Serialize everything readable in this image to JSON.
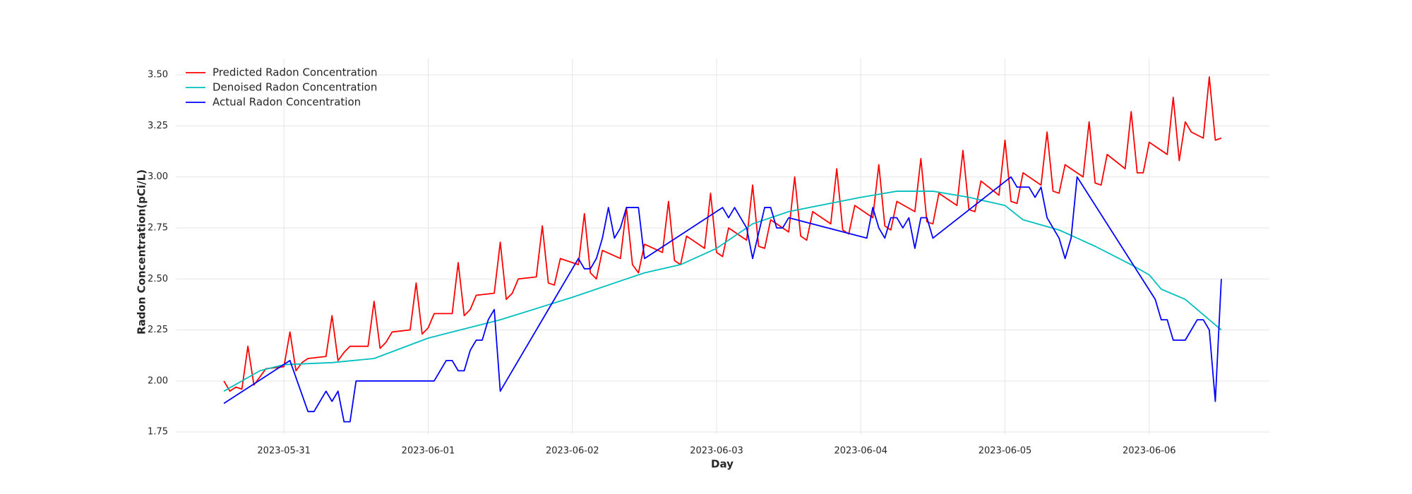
{
  "chart_data": {
    "type": "line",
    "x_label": "Day",
    "y_label": "Radon Concentration(pCi/L)",
    "xlim": [
      "2023-05-30 06:00",
      "2023-06-06 20:00"
    ],
    "xticks": [
      "2023-05-31",
      "2023-06-01",
      "2023-06-02",
      "2023-06-03",
      "2023-06-04",
      "2023-06-05",
      "2023-06-06"
    ],
    "ylim": [
      1.74,
      3.58
    ],
    "yticks": [
      1.75,
      {
        "value": 2.0,
        "label": "2.00"
      },
      2.25,
      {
        "value": 2.5,
        "label": "2.50"
      },
      2.75,
      {
        "value": 3.0,
        "label": "3.00"
      },
      3.25,
      {
        "value": 3.5,
        "label": "3.50"
      }
    ],
    "grid": true,
    "legend": "upper left",
    "series": [
      {
        "name": "Predicted Radon Concentration",
        "color": "#ff0000",
        "x": [
          "2023-05-30 14:00",
          "2023-05-30 15:00",
          "2023-05-30 16:00",
          "2023-05-30 17:00",
          "2023-05-30 18:00",
          "2023-05-30 19:00",
          "2023-05-30 20:00",
          "2023-05-30 21:00",
          "2023-05-31 00:00",
          "2023-05-31 01:00",
          "2023-05-31 02:00",
          "2023-05-31 03:00",
          "2023-05-31 04:00",
          "2023-05-31 07:00",
          "2023-05-31 08:00",
          "2023-05-31 09:00",
          "2023-05-31 10:00",
          "2023-05-31 11:00",
          "2023-05-31 14:00",
          "2023-05-31 15:00",
          "2023-05-31 16:00",
          "2023-05-31 17:00",
          "2023-05-31 18:00",
          "2023-05-31 21:00",
          "2023-05-31 22:00",
          "2023-05-31 23:00",
          "2023-06-01 00:00",
          "2023-06-01 01:00",
          "2023-06-01 04:00",
          "2023-06-01 05:00",
          "2023-06-01 06:00",
          "2023-06-01 07:00",
          "2023-06-01 08:00",
          "2023-06-01 11:00",
          "2023-06-01 12:00",
          "2023-06-01 13:00",
          "2023-06-01 14:00",
          "2023-06-01 15:00",
          "2023-06-01 18:00",
          "2023-06-01 19:00",
          "2023-06-01 20:00",
          "2023-06-01 21:00",
          "2023-06-01 22:00",
          "2023-06-02 01:00",
          "2023-06-02 02:00",
          "2023-06-02 03:00",
          "2023-06-02 04:00",
          "2023-06-02 05:00",
          "2023-06-02 08:00",
          "2023-06-02 09:00",
          "2023-06-02 10:00",
          "2023-06-02 11:00",
          "2023-06-02 12:00",
          "2023-06-02 15:00",
          "2023-06-02 16:00",
          "2023-06-02 17:00",
          "2023-06-02 18:00",
          "2023-06-02 19:00",
          "2023-06-02 22:00",
          "2023-06-02 23:00",
          "2023-06-03 00:00",
          "2023-06-03 01:00",
          "2023-06-03 02:00",
          "2023-06-03 05:00",
          "2023-06-03 06:00",
          "2023-06-03 07:00",
          "2023-06-03 08:00",
          "2023-06-03 09:00",
          "2023-06-03 12:00",
          "2023-06-03 13:00",
          "2023-06-03 14:00",
          "2023-06-03 15:00",
          "2023-06-03 16:00",
          "2023-06-03 19:00",
          "2023-06-03 20:00",
          "2023-06-03 21:00",
          "2023-06-03 22:00",
          "2023-06-03 23:00",
          "2023-06-04 02:00",
          "2023-06-04 03:00",
          "2023-06-04 04:00",
          "2023-06-04 05:00",
          "2023-06-04 06:00",
          "2023-06-04 09:00",
          "2023-06-04 10:00",
          "2023-06-04 11:00",
          "2023-06-04 12:00",
          "2023-06-04 13:00",
          "2023-06-04 16:00",
          "2023-06-04 17:00",
          "2023-06-04 18:00",
          "2023-06-04 19:00",
          "2023-06-04 20:00",
          "2023-06-04 23:00",
          "2023-06-05 00:00",
          "2023-06-05 01:00",
          "2023-06-05 02:00",
          "2023-06-05 03:00",
          "2023-06-05 06:00",
          "2023-06-05 07:00",
          "2023-06-05 08:00",
          "2023-06-05 09:00",
          "2023-06-05 10:00",
          "2023-06-05 13:00",
          "2023-06-05 14:00",
          "2023-06-05 15:00",
          "2023-06-05 16:00",
          "2023-06-05 17:00",
          "2023-06-05 20:00",
          "2023-06-05 21:00",
          "2023-06-05 22:00",
          "2023-06-05 23:00",
          "2023-06-06 00:00",
          "2023-06-06 03:00",
          "2023-06-06 04:00",
          "2023-06-06 05:00",
          "2023-06-06 06:00",
          "2023-06-06 07:00",
          "2023-06-06 09:00",
          "2023-06-06 10:00",
          "2023-06-06 11:00",
          "2023-06-06 12:00"
        ],
        "values": [
          2.0,
          1.95,
          1.97,
          1.96,
          2.17,
          1.98,
          2.02,
          2.06,
          2.07,
          2.24,
          2.05,
          2.09,
          2.11,
          2.12,
          2.32,
          2.1,
          2.14,
          2.17,
          2.17,
          2.39,
          2.16,
          2.19,
          2.24,
          2.25,
          2.48,
          2.23,
          2.26,
          2.33,
          2.33,
          2.58,
          2.32,
          2.35,
          2.42,
          2.43,
          2.68,
          2.4,
          2.43,
          2.5,
          2.51,
          2.76,
          2.48,
          2.47,
          2.6,
          2.57,
          2.82,
          2.53,
          2.5,
          2.64,
          2.6,
          2.85,
          2.57,
          2.53,
          2.67,
          2.63,
          2.88,
          2.59,
          2.57,
          2.71,
          2.65,
          2.92,
          2.63,
          2.61,
          2.75,
          2.69,
          2.96,
          2.66,
          2.65,
          2.79,
          2.73,
          3.0,
          2.71,
          2.69,
          2.83,
          2.77,
          3.04,
          2.74,
          2.72,
          2.86,
          2.8,
          3.06,
          2.76,
          2.74,
          2.88,
          2.83,
          3.09,
          2.78,
          2.77,
          2.92,
          2.86,
          3.13,
          2.84,
          2.83,
          2.98,
          2.91,
          3.18,
          2.88,
          2.87,
          3.02,
          2.96,
          3.22,
          2.93,
          2.92,
          3.06,
          3.0,
          3.27,
          2.97,
          2.96,
          3.11,
          3.04,
          3.32,
          3.02,
          3.02,
          3.17,
          3.11,
          3.39,
          3.08,
          3.27,
          3.22,
          3.19,
          3.49,
          3.18,
          3.19
        ]
      },
      {
        "name": "Denoised Radon Concentration",
        "color": "#00bfbf",
        "x": [
          "2023-05-30 14:00",
          "2023-05-30 20:00",
          "2023-05-31 00:00",
          "2023-05-31 08:00",
          "2023-05-31 15:00",
          "2023-06-01 00:00",
          "2023-06-01 12:00",
          "2023-06-02 00:00",
          "2023-06-02 12:00",
          "2023-06-02 18:00",
          "2023-06-03 00:00",
          "2023-06-03 06:00",
          "2023-06-03 12:00",
          "2023-06-04 00:00",
          "2023-06-04 06:00",
          "2023-06-04 12:00",
          "2023-06-04 18:00",
          "2023-06-05 00:00",
          "2023-06-05 03:00",
          "2023-06-05 09:00",
          "2023-06-05 15:00",
          "2023-06-05 21:00",
          "2023-06-06 00:00",
          "2023-06-06 02:00",
          "2023-06-06 06:00",
          "2023-06-06 12:00"
        ],
        "values": [
          1.95,
          2.05,
          2.08,
          2.09,
          2.11,
          2.21,
          2.3,
          2.41,
          2.53,
          2.57,
          2.65,
          2.77,
          2.83,
          2.9,
          2.93,
          2.93,
          2.9,
          2.86,
          2.79,
          2.74,
          2.66,
          2.57,
          2.52,
          2.45,
          2.4,
          2.25
        ]
      },
      {
        "name": "Actual Radon Concentration",
        "color": "#0000ff",
        "x": [
          "2023-05-30 14:00",
          "2023-05-31 01:00",
          "2023-05-31 04:00",
          "2023-05-31 05:00",
          "2023-05-31 07:00",
          "2023-05-31 08:00",
          "2023-05-31 09:00",
          "2023-05-31 10:00",
          "2023-05-31 11:00",
          "2023-05-31 12:00",
          "2023-06-01 01:00",
          "2023-06-01 03:00",
          "2023-06-01 04:00",
          "2023-06-01 05:00",
          "2023-06-01 06:00",
          "2023-06-01 07:00",
          "2023-06-01 08:00",
          "2023-06-01 09:00",
          "2023-06-01 10:00",
          "2023-06-01 11:00",
          "2023-06-01 12:00",
          "2023-06-02 01:00",
          "2023-06-02 02:00",
          "2023-06-02 03:00",
          "2023-06-02 04:00",
          "2023-06-02 05:00",
          "2023-06-02 06:00",
          "2023-06-02 07:00",
          "2023-06-02 08:00",
          "2023-06-02 09:00",
          "2023-06-02 10:00",
          "2023-06-02 11:00",
          "2023-06-02 12:00",
          "2023-06-03 01:00",
          "2023-06-03 02:00",
          "2023-06-03 03:00",
          "2023-06-03 04:00",
          "2023-06-03 05:00",
          "2023-06-03 06:00",
          "2023-06-03 08:00",
          "2023-06-03 09:00",
          "2023-06-03 10:00",
          "2023-06-03 11:00",
          "2023-06-03 12:00",
          "2023-06-04 01:00",
          "2023-06-04 02:00",
          "2023-06-04 03:00",
          "2023-06-04 04:00",
          "2023-06-04 05:00",
          "2023-06-04 06:00",
          "2023-06-04 07:00",
          "2023-06-04 08:00",
          "2023-06-04 09:00",
          "2023-06-04 10:00",
          "2023-06-04 11:00",
          "2023-06-04 12:00",
          "2023-06-05 01:00",
          "2023-06-05 02:00",
          "2023-06-05 03:00",
          "2023-06-05 04:00",
          "2023-06-05 05:00",
          "2023-06-05 06:00",
          "2023-06-05 07:00",
          "2023-06-05 09:00",
          "2023-06-05 10:00",
          "2023-06-05 11:00",
          "2023-06-05 12:00",
          "2023-06-06 01:00",
          "2023-06-06 02:00",
          "2023-06-06 03:00",
          "2023-06-06 04:00",
          "2023-06-06 06:00",
          "2023-06-06 08:00",
          "2023-06-06 09:00",
          "2023-06-06 10:00",
          "2023-06-06 11:00",
          "2023-06-06 12:00"
        ],
        "values": [
          1.89,
          2.1,
          1.85,
          1.85,
          1.95,
          1.9,
          1.95,
          1.8,
          1.8,
          2.0,
          2.0,
          2.1,
          2.1,
          2.05,
          2.05,
          2.15,
          2.2,
          2.2,
          2.3,
          2.35,
          1.95,
          2.6,
          2.55,
          2.55,
          2.6,
          2.7,
          2.85,
          2.7,
          2.75,
          2.85,
          2.85,
          2.85,
          2.6,
          2.85,
          2.8,
          2.85,
          2.8,
          2.75,
          2.6,
          2.85,
          2.85,
          2.75,
          2.75,
          2.8,
          2.7,
          2.85,
          2.75,
          2.7,
          2.8,
          2.8,
          2.75,
          2.8,
          2.65,
          2.8,
          2.8,
          2.7,
          3.0,
          2.95,
          2.95,
          2.95,
          2.9,
          2.95,
          2.8,
          2.7,
          2.6,
          2.7,
          3.0,
          2.4,
          2.3,
          2.3,
          2.2,
          2.2,
          2.3,
          2.3,
          2.25,
          1.9,
          2.5
        ]
      }
    ]
  }
}
